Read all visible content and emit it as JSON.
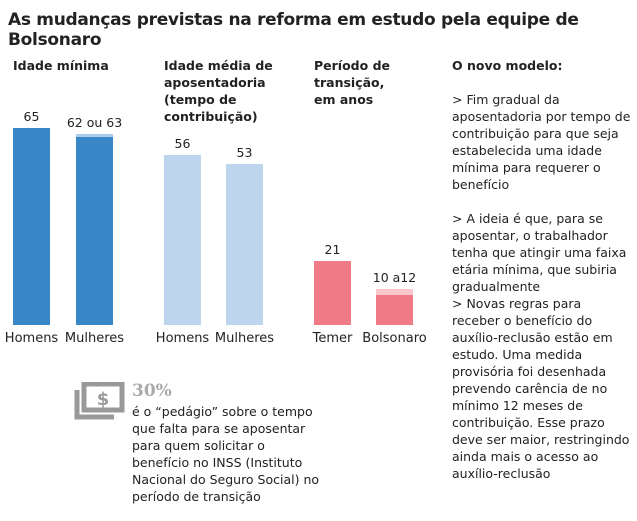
{
  "title": "As mudanças previstas na reforma em estudo pela equipe de Bolsonaro",
  "chart_data": [
    {
      "type": "bar",
      "title": "Idade mínima",
      "categories": [
        "Homens",
        "Mulheres"
      ],
      "values": [
        65,
        63
      ],
      "range_low": [
        null,
        62
      ],
      "value_labels": [
        "65",
        "62 ou 63"
      ],
      "color": "#3a87c8"
    },
    {
      "type": "bar",
      "title": "Idade média de aposentadoria (tempo de contribuição)",
      "categories": [
        "Homens",
        "Mulheres"
      ],
      "values": [
        56,
        53
      ],
      "value_labels": [
        "56",
        "53"
      ],
      "color": "#bdd6ee"
    },
    {
      "type": "bar",
      "title": "Período de transição, em anos",
      "categories": [
        "Temer",
        "Bolsonaro"
      ],
      "values": [
        21,
        12
      ],
      "range_low": [
        null,
        10
      ],
      "value_labels": [
        "21",
        "10 a12"
      ],
      "color": "#f07a85"
    }
  ],
  "side": {
    "heading": "O novo modelo:",
    "paragraphs": [
      "> Fim gradual da aposentadoria por tempo de contribuição para que seja estabelecida uma idade mínima para requerer o benefício",
      "> A ideia é que, para se aposentar, o trabalhador tenha que atingir uma faixa etária mínima, que subiria gradualmente",
      "> Novas regras para receber o benefício do auxílio-reclusão estão em estudo. Uma medida provisória foi desenhada prevendo carência de no mínimo 12 meses de contribuição. Esse prazo deve ser maior, restringindo ainda mais o acesso ao auxílio-reclusão"
    ]
  },
  "note": {
    "icon": "money-monitor-icon",
    "value": "30%",
    "text": "é o “pedágio” sobre o tempo que falta para se aposentar para quem solicitar o benefício no INSS (Instituto Nacional do Seguro Social) no período de transição"
  }
}
